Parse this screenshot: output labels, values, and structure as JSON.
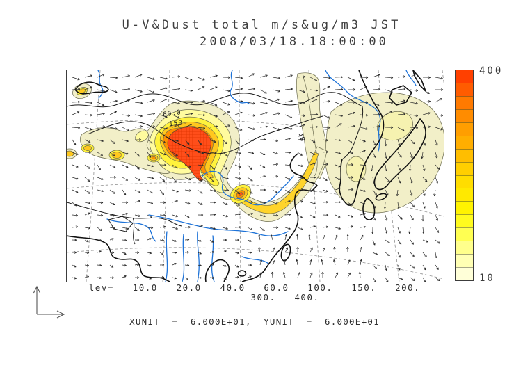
{
  "title": {
    "line1": "U-V&Dust total m/s&ug/m3 JST",
    "line2": "2008/03/18.18:00:00"
  },
  "legend": {
    "lev_line1": "lev=  10.0  20.0  40.0  60.0  100.  150.  200.",
    "lev_line2": "300.  400.",
    "units": "XUNIT  =  6.000E+01,  YUNIT  =  6.000E+01"
  },
  "colorbar": {
    "max_label": "400",
    "min_label": "10",
    "colors": [
      "#ff4000",
      "#ff5c00",
      "#ff7a00",
      "#ff8c00",
      "#ff9e00",
      "#ffae00",
      "#ffbe00",
      "#ffcf00",
      "#ffdd00",
      "#ffe900",
      "#fff300",
      "#fffb1e",
      "#ffff52",
      "#ffff8c",
      "#ffffb4",
      "#ffffd8"
    ]
  },
  "map": {
    "contour_labels": [
      {
        "text": "60.0"
      },
      {
        "text": "150."
      },
      {
        "text": "40"
      }
    ],
    "colors": {
      "pale": "#f2efc8",
      "pale_inner": "#f6f2b0",
      "yellow": "#fff23c",
      "gold": "#ffc81e",
      "orange": "#ff9000",
      "red": "#ff4e1a",
      "contour_line": "#6b6b4f",
      "river": "#1e73d8",
      "coast": "#111111"
    }
  },
  "chart_data": {
    "type": "heatmap",
    "title": "U-V&Dust total m/s&ug/m3 JST",
    "subtitle": "2008/03/18.18:00:00",
    "variable": "dust total concentration (ug/m3) filled contours with U-V wind vectors (m/s)",
    "region": "East Asia (China, Mongolia, Korea, Japan)",
    "contour_levels": [
      10.0,
      20.0,
      40.0,
      60.0,
      100,
      150,
      200,
      300,
      400
    ],
    "colorbar": {
      "min": 10,
      "max": 400,
      "orientation": "vertical",
      "position": "right",
      "low_color": "#ffffd8",
      "high_color": "#ff4000"
    },
    "labeled_contours": [
      "60.0",
      "150.",
      "40"
    ],
    "vector_scale": {
      "xunit": "6.000E+01",
      "yunit": "6.000E+01"
    },
    "features": [
      "primary dust maximum >400 ug/m3 over Mongolia/Gobi region",
      "secondary maximum ~150-200 ug/m3 southeast of main plume",
      "10-40 ug/m3 pale plume band extending over Manchuria, Korea and Japan",
      "small 20-60 ug/m3 cells west of the main plume",
      "prevailing westerly wind vectors in the north, southward flow over the Sea of Japan"
    ]
  }
}
